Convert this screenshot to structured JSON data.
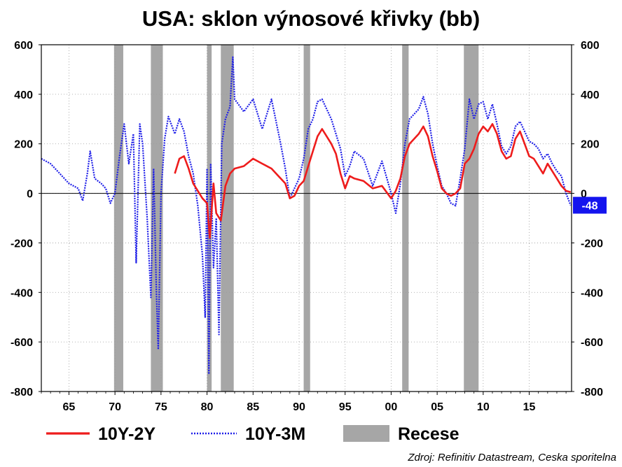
{
  "chart_data": {
    "type": "line",
    "title": "USA: sklon výnosové křivky (bb)",
    "xlabel": "",
    "ylabel": "",
    "xlim": [
      1962.0,
      2019.6
    ],
    "ylim": [
      -800,
      600
    ],
    "x_ticks": [
      1965,
      1970,
      1975,
      1980,
      1985,
      1990,
      1995,
      2000,
      2005,
      2010,
      2015
    ],
    "x_tick_labels": [
      "65",
      "70",
      "75",
      "80",
      "85",
      "90",
      "95",
      "00",
      "05",
      "10",
      "15"
    ],
    "y_ticks": [
      -800,
      -600,
      -400,
      -200,
      0,
      200,
      400,
      600
    ],
    "y_tick_labels": [
      "-800",
      "-600",
      "-400",
      "-200",
      "0",
      "200",
      "400",
      "600"
    ],
    "grid": true,
    "legend_position": "bottom",
    "colors": {
      "s2": "#ee1c1c",
      "s3m": "#1f1fe8",
      "recession": "#a6a6a6",
      "zero_line": "#000000"
    },
    "recessions": [
      [
        1969.9,
        1970.9
      ],
      [
        1973.9,
        1975.2
      ],
      [
        1980.0,
        1980.5
      ],
      [
        1981.5,
        1982.9
      ],
      [
        1990.5,
        1991.2
      ],
      [
        2001.2,
        2001.9
      ],
      [
        2007.9,
        2009.5
      ]
    ],
    "series": [
      {
        "name": "10Y-2Y",
        "style": "solid",
        "points": [
          [
            1976.5,
            80
          ],
          [
            1977.0,
            140
          ],
          [
            1977.5,
            150
          ],
          [
            1978.0,
            100
          ],
          [
            1978.5,
            40
          ],
          [
            1979.0,
            10
          ],
          [
            1979.5,
            -20
          ],
          [
            1980.0,
            -40
          ],
          [
            1980.3,
            -180
          ],
          [
            1980.7,
            40
          ],
          [
            1981.0,
            -80
          ],
          [
            1981.5,
            -110
          ],
          [
            1982.0,
            30
          ],
          [
            1982.5,
            80
          ],
          [
            1983.0,
            100
          ],
          [
            1984.0,
            110
          ],
          [
            1985.0,
            140
          ],
          [
            1986.0,
            120
          ],
          [
            1987.0,
            100
          ],
          [
            1988.0,
            60
          ],
          [
            1988.5,
            40
          ],
          [
            1989.0,
            -20
          ],
          [
            1989.5,
            -10
          ],
          [
            1990.0,
            30
          ],
          [
            1990.5,
            50
          ],
          [
            1991.0,
            110
          ],
          [
            1991.5,
            170
          ],
          [
            1992.0,
            230
          ],
          [
            1992.5,
            260
          ],
          [
            1993.0,
            230
          ],
          [
            1993.5,
            200
          ],
          [
            1994.0,
            160
          ],
          [
            1994.5,
            80
          ],
          [
            1995.0,
            20
          ],
          [
            1995.5,
            70
          ],
          [
            1996.0,
            60
          ],
          [
            1997.0,
            50
          ],
          [
            1998.0,
            20
          ],
          [
            1999.0,
            30
          ],
          [
            2000.0,
            -20
          ],
          [
            2000.5,
            10
          ],
          [
            2001.0,
            60
          ],
          [
            2001.5,
            150
          ],
          [
            2002.0,
            200
          ],
          [
            2003.0,
            240
          ],
          [
            2003.5,
            270
          ],
          [
            2004.0,
            230
          ],
          [
            2004.5,
            150
          ],
          [
            2005.0,
            90
          ],
          [
            2005.5,
            20
          ],
          [
            2006.0,
            0
          ],
          [
            2006.5,
            -10
          ],
          [
            2007.0,
            0
          ],
          [
            2007.5,
            20
          ],
          [
            2008.0,
            120
          ],
          [
            2008.5,
            140
          ],
          [
            2009.0,
            180
          ],
          [
            2009.5,
            240
          ],
          [
            2010.0,
            270
          ],
          [
            2010.5,
            250
          ],
          [
            2011.0,
            280
          ],
          [
            2011.5,
            240
          ],
          [
            2012.0,
            170
          ],
          [
            2012.5,
            140
          ],
          [
            2013.0,
            150
          ],
          [
            2013.5,
            220
          ],
          [
            2014.0,
            250
          ],
          [
            2014.5,
            200
          ],
          [
            2015.0,
            150
          ],
          [
            2015.5,
            140
          ],
          [
            2016.0,
            110
          ],
          [
            2016.5,
            80
          ],
          [
            2017.0,
            120
          ],
          [
            2017.5,
            90
          ],
          [
            2018.0,
            60
          ],
          [
            2018.5,
            30
          ],
          [
            2019.0,
            10
          ],
          [
            2019.5,
            5
          ]
        ]
      },
      {
        "name": "10Y-3M",
        "style": "dotted",
        "points": [
          [
            1962.0,
            140
          ],
          [
            1963.0,
            120
          ],
          [
            1964.0,
            80
          ],
          [
            1965.0,
            40
          ],
          [
            1966.0,
            20
          ],
          [
            1966.5,
            -30
          ],
          [
            1967.0,
            80
          ],
          [
            1967.3,
            170
          ],
          [
            1967.8,
            60
          ],
          [
            1968.5,
            40
          ],
          [
            1969.0,
            20
          ],
          [
            1969.5,
            -40
          ],
          [
            1970.0,
            0
          ],
          [
            1970.5,
            150
          ],
          [
            1971.0,
            280
          ],
          [
            1971.5,
            120
          ],
          [
            1972.0,
            240
          ],
          [
            1972.3,
            -280
          ],
          [
            1972.7,
            280
          ],
          [
            1973.0,
            200
          ],
          [
            1973.5,
            -100
          ],
          [
            1973.9,
            -420
          ],
          [
            1974.2,
            100
          ],
          [
            1974.5,
            -400
          ],
          [
            1974.7,
            -630
          ],
          [
            1975.0,
            0
          ],
          [
            1975.4,
            220
          ],
          [
            1975.8,
            310
          ],
          [
            1976.5,
            240
          ],
          [
            1977.0,
            300
          ],
          [
            1977.5,
            250
          ],
          [
            1978.0,
            150
          ],
          [
            1978.5,
            80
          ],
          [
            1979.0,
            -50
          ],
          [
            1979.5,
            -250
          ],
          [
            1979.8,
            -500
          ],
          [
            1980.0,
            100
          ],
          [
            1980.2,
            -730
          ],
          [
            1980.4,
            120
          ],
          [
            1980.7,
            -300
          ],
          [
            1981.0,
            -100
          ],
          [
            1981.3,
            -570
          ],
          [
            1981.6,
            200
          ],
          [
            1982.0,
            300
          ],
          [
            1982.5,
            350
          ],
          [
            1982.8,
            550
          ],
          [
            1983.0,
            380
          ],
          [
            1984.0,
            330
          ],
          [
            1985.0,
            380
          ],
          [
            1986.0,
            260
          ],
          [
            1987.0,
            380
          ],
          [
            1988.0,
            200
          ],
          [
            1988.5,
            100
          ],
          [
            1989.0,
            -20
          ],
          [
            1989.5,
            20
          ],
          [
            1990.0,
            60
          ],
          [
            1990.5,
            140
          ],
          [
            1991.0,
            260
          ],
          [
            1991.5,
            300
          ],
          [
            1992.0,
            370
          ],
          [
            1992.5,
            380
          ],
          [
            1993.0,
            340
          ],
          [
            1993.5,
            300
          ],
          [
            1994.0,
            240
          ],
          [
            1994.5,
            180
          ],
          [
            1995.0,
            70
          ],
          [
            1995.5,
            110
          ],
          [
            1996.0,
            170
          ],
          [
            1997.0,
            140
          ],
          [
            1998.0,
            30
          ],
          [
            1999.0,
            130
          ],
          [
            2000.0,
            0
          ],
          [
            2000.5,
            -80
          ],
          [
            2001.0,
            40
          ],
          [
            2001.5,
            200
          ],
          [
            2002.0,
            300
          ],
          [
            2003.0,
            340
          ],
          [
            2003.5,
            390
          ],
          [
            2004.0,
            320
          ],
          [
            2004.5,
            200
          ],
          [
            2005.0,
            110
          ],
          [
            2005.5,
            30
          ],
          [
            2006.0,
            0
          ],
          [
            2006.5,
            -40
          ],
          [
            2007.0,
            -50
          ],
          [
            2007.5,
            60
          ],
          [
            2008.0,
            180
          ],
          [
            2008.5,
            380
          ],
          [
            2009.0,
            300
          ],
          [
            2009.5,
            360
          ],
          [
            2010.0,
            370
          ],
          [
            2010.5,
            300
          ],
          [
            2011.0,
            360
          ],
          [
            2011.5,
            280
          ],
          [
            2012.0,
            190
          ],
          [
            2012.5,
            160
          ],
          [
            2013.0,
            190
          ],
          [
            2013.5,
            270
          ],
          [
            2014.0,
            290
          ],
          [
            2014.5,
            250
          ],
          [
            2015.0,
            210
          ],
          [
            2015.5,
            200
          ],
          [
            2016.0,
            180
          ],
          [
            2016.5,
            140
          ],
          [
            2017.0,
            160
          ],
          [
            2017.5,
            120
          ],
          [
            2018.0,
            90
          ],
          [
            2018.5,
            70
          ],
          [
            2019.0,
            0
          ],
          [
            2019.5,
            -48
          ]
        ]
      }
    ],
    "end_label": {
      "series": "10Y-3M",
      "value": "-48"
    },
    "legend": {
      "s2": "10Y-2Y",
      "s3m": "10Y-3M",
      "recession": "Recese"
    },
    "source": "Zdroj: Refinitiv Datastream, Ceska sporitelna"
  }
}
